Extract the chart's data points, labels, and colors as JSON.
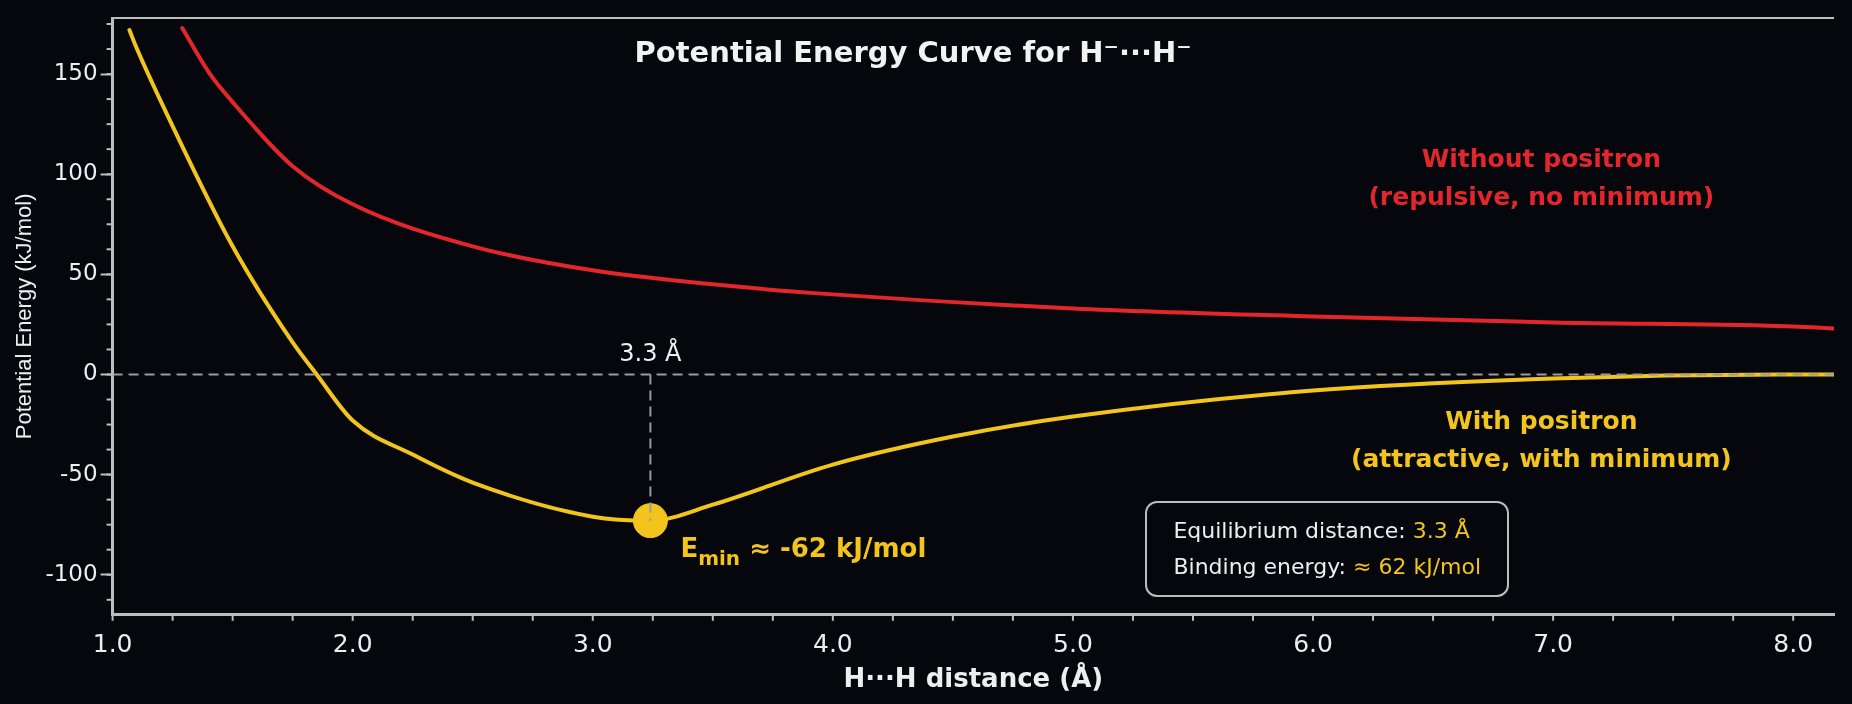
{
  "chart_data": {
    "type": "line",
    "title": "Potential Energy Curve for H⁻···H⁻",
    "xlabel": "H···H distance (Å)",
    "ylabel": "Potential Energy (kJ/mol)",
    "xlim": [
      1.0,
      8.17
    ],
    "ylim": [
      -120,
      178
    ],
    "xticks": [
      {
        "value": 1,
        "label": "1.0"
      },
      {
        "value": 2,
        "label": "2.0"
      },
      {
        "value": 3,
        "label": "3.0"
      },
      {
        "value": 4,
        "label": "4.0"
      },
      {
        "value": 5,
        "label": "5.0"
      },
      {
        "value": 6,
        "label": "6.0"
      },
      {
        "value": 7,
        "label": "7.0"
      },
      {
        "value": 8,
        "label": "8.0"
      }
    ],
    "yticks": [
      -100,
      -50,
      0,
      50,
      100,
      150
    ],
    "grid": false,
    "legend": false,
    "marker": "none",
    "line_style": "solid",
    "series": [
      {
        "name": "Without positron (repulsive, no minimum)",
        "color": "#e3262b",
        "x": [
          1.29,
          1.4,
          1.5,
          1.75,
          2.0,
          2.5,
          3.0,
          3.5,
          4.0,
          5.0,
          6.0,
          7.0,
          8.0,
          8.17
        ],
        "values": [
          173,
          151,
          136,
          104,
          85,
          64,
          52,
          45,
          40,
          33,
          29,
          26,
          24,
          23
        ]
      },
      {
        "name": "With positron (attractive, with minimum)",
        "color": "#f2c41c",
        "x": [
          1.07,
          1.1,
          1.25,
          1.5,
          1.75,
          1.85,
          2.0,
          2.25,
          2.5,
          3.0,
          3.24,
          3.5,
          4.0,
          4.5,
          5.0,
          6.0,
          7.0,
          8.0,
          8.17
        ],
        "values": [
          172,
          163,
          124,
          64,
          16,
          0,
          -23,
          -40,
          -54,
          -71,
          -73,
          -65,
          -45,
          -31,
          -21,
          -8,
          -2,
          0,
          0
        ]
      },
      {
        "type": "scatter",
        "color": "#f2c41c",
        "x": [
          3.24
        ],
        "values": [
          -73
        ],
        "marker": "circle"
      }
    ],
    "ref_lines": [
      {
        "axis": "y",
        "value": 0,
        "color": "#9a9a9a",
        "line_style": "dashed"
      },
      {
        "axis": "x",
        "value": 3.24,
        "label": "3.3 Å",
        "color": "#9a9a9a",
        "line_style": "dashed"
      }
    ],
    "annotations": [
      {
        "text": "E$_{min}$ ≈ -62 kJ/mol",
        "x": 3.24,
        "y": -73
      },
      "Equilibrium distance: 3.3 Å",
      "Binding energy: ≈ 62 kJ/mol"
    ]
  }
}
